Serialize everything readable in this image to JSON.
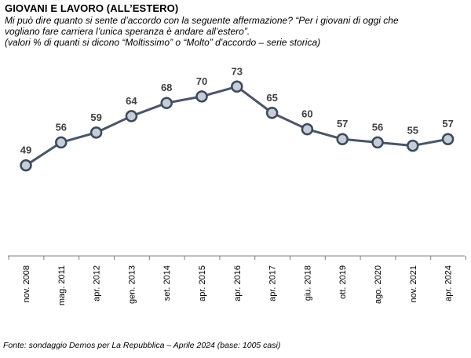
{
  "title": "GIOVANI E LAVORO (ALL’ESTERO)",
  "subtitle_lines": [
    "Mi può dire quanto si sente d’accordo con la seguente affermazione? “Per i giovani di oggi che",
    "vogliano fare carriera l’unica speranza è andare all’estero”.",
    "(valori % di quanti si dicono “Moltissimo” o “Molto” d’accordo – serie storica)"
  ],
  "source": "Fonte: sondaggio Demos per La Repubblica – Aprile 2024 (base: 1005 casi)",
  "colors": {
    "line": "#4a5568",
    "marker_fill": "#c7cdd6",
    "marker_stroke": "#3d4a5c",
    "axis": "#7f7f7f"
  },
  "chart_data": {
    "type": "line",
    "categories": [
      "nov. 2008",
      "mag. 2011",
      "apr. 2012",
      "gen. 2013",
      "set. 2014",
      "apr. 2015",
      "apr. 2016",
      "apr. 2017",
      "giu. 2018",
      "ott. 2019",
      "ago. 2020",
      "nov. 2021",
      "apr. 2024"
    ],
    "series": [
      {
        "values": [
          49,
          56,
          59,
          64,
          68,
          70,
          73,
          65,
          60,
          57,
          56,
          55,
          57
        ]
      }
    ],
    "data_labels": true,
    "grid": false,
    "legend": "none",
    "ylim": [
      20,
      80
    ]
  }
}
